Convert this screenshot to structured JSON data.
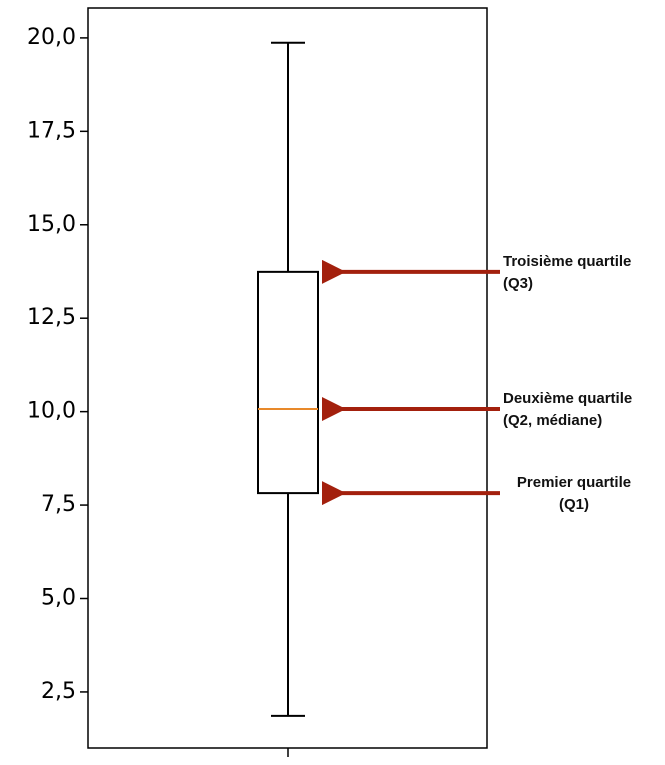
{
  "chart_data": {
    "type": "box",
    "boxes": [
      {
        "whislo": 1.86,
        "q1": 7.82,
        "med": 10.07,
        "q3": 13.74,
        "whishi": 19.87
      }
    ],
    "box_color": "#000000",
    "median_color": "#e8892a",
    "arrow_color": "#a3200d",
    "ylim": [
      1.0,
      20.8
    ],
    "yticks": [
      {
        "value": 2.5,
        "label": "2,5"
      },
      {
        "value": 5.0,
        "label": "5,0"
      },
      {
        "value": 7.5,
        "label": "7,5"
      },
      {
        "value": 10.0,
        "label": "10,0"
      },
      {
        "value": 12.5,
        "label": "12,5"
      },
      {
        "value": 15.0,
        "label": "15,0"
      },
      {
        "value": 17.5,
        "label": "17,5"
      },
      {
        "value": 20.0,
        "label": "20,0"
      }
    ],
    "annotations": [
      {
        "lines": [
          "Troisième quartile",
          "(Q3)"
        ]
      },
      {
        "lines": [
          "Deuxième quartile",
          "(Q2, médiane)"
        ]
      },
      {
        "lines": [
          "Premier quartile",
          "(Q1)"
        ]
      }
    ]
  }
}
